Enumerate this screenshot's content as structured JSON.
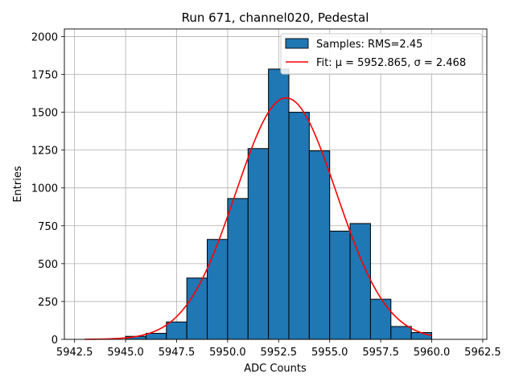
{
  "chart_data": {
    "type": "bar",
    "title": "Run 671, channel020, Pedestal",
    "xlabel": "ADC Counts",
    "ylabel": "Entries",
    "xlim": [
      5942.0,
      5962.7
    ],
    "ylim": [
      0,
      2050
    ],
    "xticks": [
      5942.5,
      5945.0,
      5947.5,
      5950.0,
      5952.5,
      5955.0,
      5957.5,
      5960.0,
      5962.5
    ],
    "xtick_labels": [
      "5942.5",
      "5945.0",
      "5947.5",
      "5950.0",
      "5952.5",
      "5955.0",
      "5957.5",
      "5960.0",
      "5962.5"
    ],
    "yticks": [
      0,
      250,
      500,
      750,
      1000,
      1250,
      1500,
      1750,
      2000
    ],
    "ytick_labels": [
      "0",
      "250",
      "500",
      "750",
      "1000",
      "1250",
      "1500",
      "1750",
      "2000"
    ],
    "grid": true,
    "legend_position": "upper right",
    "histogram": {
      "name": "Samples: RMS=2.45",
      "color": "#1f77b4",
      "bin_edges": [
        5945.0,
        5946.0,
        5947.0,
        5948.0,
        5949.0,
        5950.0,
        5951.0,
        5952.0,
        5953.0,
        5954.0,
        5955.0,
        5956.0,
        5957.0,
        5958.0,
        5959.0,
        5960.0
      ],
      "counts": [
        20,
        40,
        115,
        405,
        660,
        930,
        1260,
        1785,
        1500,
        1245,
        715,
        765,
        265,
        85,
        45
      ]
    },
    "fit": {
      "name": "Fit: μ = 5952.865, σ = 2.468",
      "color": "#ff0000",
      "mu": 5952.865,
      "sigma": 2.468,
      "amplitude": 1595,
      "x_range": [
        5943.0,
        5960.0
      ]
    }
  }
}
